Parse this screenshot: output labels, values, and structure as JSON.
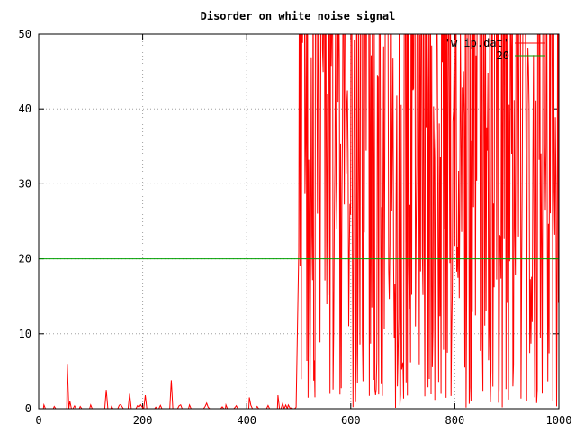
{
  "chart_data": {
    "type": "line",
    "title": "Disorder on white noise signal",
    "xlabel": "",
    "ylabel": "",
    "xlim": [
      0,
      1000
    ],
    "ylim": [
      0,
      50
    ],
    "x_ticks": [
      0,
      200,
      400,
      600,
      800,
      1000
    ],
    "y_ticks": [
      0,
      10,
      20,
      30,
      40,
      50
    ],
    "grid": true,
    "legend_position": "top-right",
    "colors": {
      "series": "#ff0000",
      "threshold": "#00a000"
    },
    "series": [
      {
        "name": "'w_ip.dat'",
        "color": "#ff0000",
        "x_range": [
          0,
          1000
        ],
        "description_points": [
          [
            0,
            0
          ],
          [
            10,
            0.5
          ],
          [
            30,
            0.3
          ],
          [
            55,
            6
          ],
          [
            60,
            1
          ],
          [
            80,
            0.3
          ],
          [
            100,
            0.5
          ],
          [
            130,
            2.5
          ],
          [
            140,
            0.3
          ],
          [
            160,
            0.3
          ],
          [
            175,
            2
          ],
          [
            190,
            0.4
          ],
          [
            205,
            1.8
          ],
          [
            225,
            0.2
          ],
          [
            255,
            3.8
          ],
          [
            270,
            0.4
          ],
          [
            290,
            0.5
          ],
          [
            320,
            0.3
          ],
          [
            360,
            0.5
          ],
          [
            380,
            0.4
          ],
          [
            405,
            1.5
          ],
          [
            420,
            0.3
          ],
          [
            460,
            1.8
          ],
          [
            480,
            0.5
          ],
          [
            495,
            0.2
          ]
        ]
      },
      {
        "name": "20",
        "color": "#00a000",
        "constant": 20
      }
    ]
  }
}
